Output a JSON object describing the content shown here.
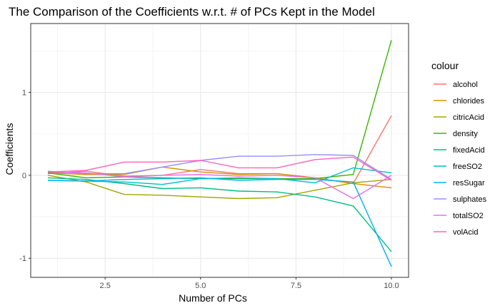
{
  "chart_data": {
    "type": "line",
    "title": "The Comparison of the Coefficients w.r.t. # of PCs Kept in the Model",
    "xlabel": "Number of PCs",
    "ylabel": "Coefficients",
    "xlim": [
      0.55,
      10.45
    ],
    "ylim": [
      -1.23,
      1.83
    ],
    "x_ticks": [
      2.5,
      5.0,
      7.5,
      10.0
    ],
    "x_tick_labels": [
      "2.5",
      "5.0",
      "7.5",
      "10.0"
    ],
    "y_ticks": [
      -1,
      0,
      1
    ],
    "y_tick_labels": [
      "-1",
      "0",
      "1"
    ],
    "grid": true,
    "legend_title": "colour",
    "legend_position": "right",
    "x": [
      1,
      2,
      3,
      4,
      5,
      6,
      7,
      8,
      9,
      10
    ],
    "series": [
      {
        "name": "alcohol",
        "color": "#F8766D",
        "values": [
          0.02,
          0.05,
          -0.01,
          0.0,
          0.07,
          0.02,
          0.02,
          -0.03,
          -0.1,
          0.72
        ]
      },
      {
        "name": "chlorides",
        "color": "#D89000",
        "values": [
          0.03,
          0.01,
          0.01,
          0.1,
          0.04,
          0.01,
          0.02,
          -0.03,
          -0.1,
          -0.15
        ]
      },
      {
        "name": "citricAcid",
        "color": "#A3A500",
        "values": [
          0.0,
          -0.08,
          -0.23,
          -0.24,
          -0.26,
          -0.28,
          -0.27,
          -0.18,
          -0.09,
          -0.05
        ]
      },
      {
        "name": "density",
        "color": "#39B600",
        "values": [
          0.03,
          -0.03,
          -0.02,
          -0.03,
          -0.04,
          -0.04,
          -0.04,
          -0.04,
          0.01,
          1.63
        ]
      },
      {
        "name": "fixedAcid",
        "color": "#00BF7D",
        "values": [
          -0.03,
          -0.05,
          -0.1,
          -0.16,
          -0.15,
          -0.19,
          -0.2,
          -0.26,
          -0.37,
          -0.92
        ]
      },
      {
        "name": "freeSO2",
        "color": "#00BFC4",
        "values": [
          -0.06,
          -0.07,
          -0.08,
          -0.11,
          -0.04,
          -0.03,
          -0.04,
          -0.09,
          0.09,
          0.03
        ]
      },
      {
        "name": "resSugar",
        "color": "#00B0F6",
        "values": [
          -0.06,
          -0.07,
          -0.05,
          -0.04,
          -0.03,
          -0.06,
          -0.05,
          -0.05,
          -0.08,
          -1.1
        ]
      },
      {
        "name": "sulphates",
        "color": "#9590FF",
        "values": [
          0.05,
          0.02,
          0.02,
          0.1,
          0.18,
          0.23,
          0.23,
          0.25,
          0.24,
          -0.05
        ]
      },
      {
        "name": "totalSO2",
        "color": "#E76BF3",
        "values": [
          0.04,
          0.03,
          -0.02,
          0.0,
          0.01,
          -0.01,
          0.0,
          -0.03,
          -0.28,
          0.0
        ]
      },
      {
        "name": "volAcid",
        "color": "#FF62BC",
        "values": [
          0.04,
          0.06,
          0.16,
          0.16,
          0.18,
          0.09,
          0.09,
          0.19,
          0.22,
          -0.06
        ]
      }
    ]
  }
}
